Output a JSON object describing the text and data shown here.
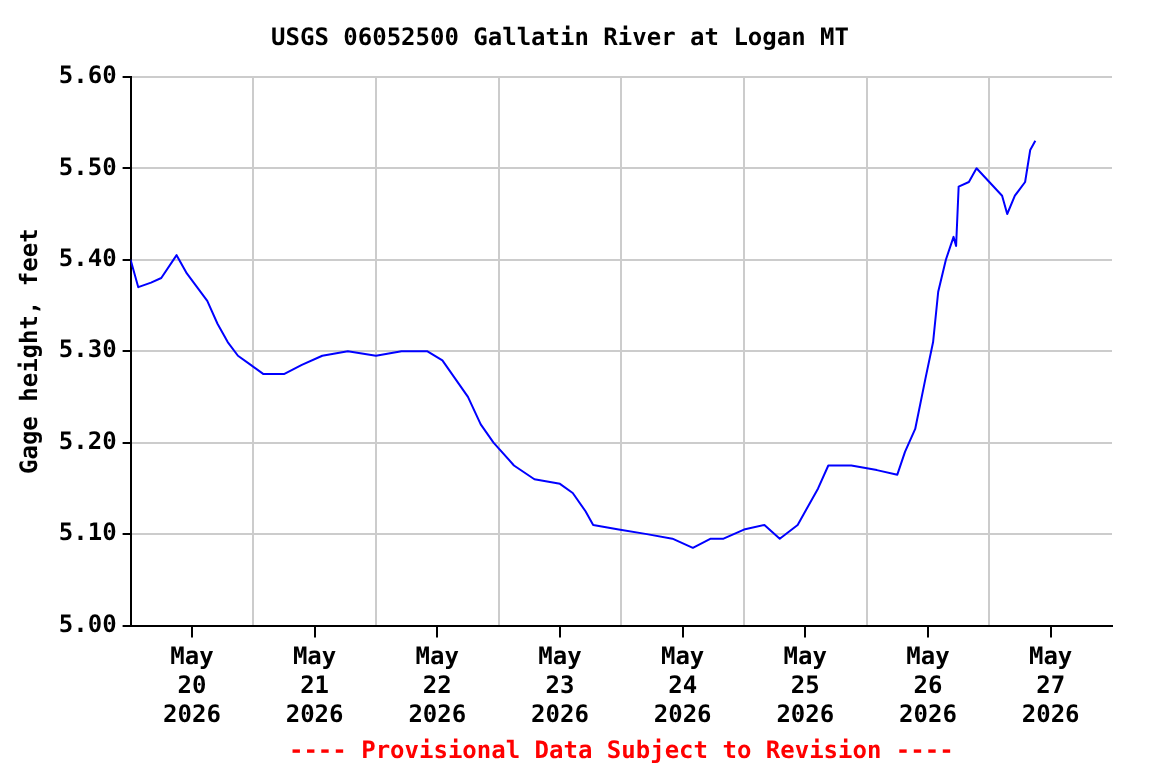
{
  "chart_data": {
    "type": "line",
    "title": "USGS 06052500 Gallatin River at Logan MT",
    "ylabel": "Gage height, feet",
    "annotations": [
      "---- Provisional Data Subject to Revision ----"
    ],
    "x": [
      "2026-05-19T12:00",
      "2026-05-19T13:30",
      "2026-05-19T16:00",
      "2026-05-19T18:00",
      "2026-05-19T21:00",
      "2026-05-19T23:00",
      "2026-05-20T01:00",
      "2026-05-20T03:00",
      "2026-05-20T05:00",
      "2026-05-20T07:00",
      "2026-05-20T09:00",
      "2026-05-20T11:30",
      "2026-05-20T14:00",
      "2026-05-20T18:00",
      "2026-05-20T21:30",
      "2026-05-21T01:30",
      "2026-05-21T06:30",
      "2026-05-21T12:00",
      "2026-05-21T17:00",
      "2026-05-21T22:00",
      "2026-05-22T01:00",
      "2026-05-22T03:30",
      "2026-05-22T06:00",
      "2026-05-22T08:30",
      "2026-05-22T11:00",
      "2026-05-22T15:00",
      "2026-05-22T19:00",
      "2026-05-23T00:00",
      "2026-05-23T02:30",
      "2026-05-23T05:00",
      "2026-05-23T06:30",
      "2026-05-23T11:30",
      "2026-05-23T17:00",
      "2026-05-23T22:00",
      "2026-05-24T02:00",
      "2026-05-24T05:30",
      "2026-05-24T08:00",
      "2026-05-24T12:00",
      "2026-05-24T16:00",
      "2026-05-24T19:00",
      "2026-05-24T22:30",
      "2026-05-25T02:30",
      "2026-05-25T04:30",
      "2026-05-25T09:00",
      "2026-05-25T14:00",
      "2026-05-25T18:00",
      "2026-05-25T19:30",
      "2026-05-25T21:30",
      "2026-05-25T23:30",
      "2026-05-26T01:00",
      "2026-05-26T02:00",
      "2026-05-26T03:30",
      "2026-05-26T05:00",
      "2026-05-26T05:30",
      "2026-05-26T06:00",
      "2026-05-26T08:00",
      "2026-05-26T09:30",
      "2026-05-26T12:00",
      "2026-05-26T14:30",
      "2026-05-26T15:30",
      "2026-05-26T17:00",
      "2026-05-26T19:00",
      "2026-05-26T20:00",
      "2026-05-26T21:00"
    ],
    "series": [
      {
        "color": "#0000ff",
        "values": [
          5.4,
          5.37,
          5.375,
          5.38,
          5.405,
          5.385,
          5.37,
          5.355,
          5.33,
          5.31,
          5.295,
          5.285,
          5.275,
          5.275,
          5.285,
          5.295,
          5.3,
          5.295,
          5.3,
          5.3,
          5.29,
          5.27,
          5.25,
          5.22,
          5.2,
          5.175,
          5.16,
          5.155,
          5.145,
          5.125,
          5.11,
          5.105,
          5.1,
          5.095,
          5.085,
          5.095,
          5.095,
          5.105,
          5.11,
          5.095,
          5.11,
          5.15,
          5.175,
          5.175,
          5.17,
          5.165,
          5.19,
          5.215,
          5.27,
          5.31,
          5.365,
          5.4,
          5.425,
          5.415,
          5.48,
          5.485,
          5.5,
          5.485,
          5.47,
          5.45,
          5.47,
          5.485,
          5.52,
          5.53
        ]
      }
    ],
    "xlim": [
      "2026-05-19T12:00",
      "2026-05-27T12:00"
    ],
    "xticks": [
      {
        "value": "2026-05-20T00:00",
        "label": "May 20 2026"
      },
      {
        "value": "2026-05-20T12:00",
        "label": null
      },
      {
        "value": "2026-05-21T00:00",
        "label": "May 21 2026"
      },
      {
        "value": "2026-05-21T12:00",
        "label": null
      },
      {
        "value": "2026-05-22T00:00",
        "label": "May 22 2026"
      },
      {
        "value": "2026-05-22T12:00",
        "label": null
      },
      {
        "value": "2026-05-23T00:00",
        "label": "May 23 2026"
      },
      {
        "value": "2026-05-23T12:00",
        "label": null
      },
      {
        "value": "2026-05-24T00:00",
        "label": "May 24 2026"
      },
      {
        "value": "2026-05-24T12:00",
        "label": null
      },
      {
        "value": "2026-05-25T00:00",
        "label": "May 25 2026"
      },
      {
        "value": "2026-05-25T12:00",
        "label": null
      },
      {
        "value": "2026-05-26T00:00",
        "label": "May 26 2026"
      },
      {
        "value": "2026-05-26T12:00",
        "label": null
      },
      {
        "value": "2026-05-27T00:00",
        "label": "May 27 2026"
      }
    ],
    "ylim": [
      5.0,
      5.6
    ],
    "yticks": [
      {
        "value": 5.0,
        "label": "5.00"
      },
      {
        "value": 5.1,
        "label": "5.10"
      },
      {
        "value": 5.2,
        "label": "5.20"
      },
      {
        "value": 5.3,
        "label": "5.30"
      },
      {
        "value": 5.4,
        "label": "5.40"
      },
      {
        "value": 5.5,
        "label": "5.50"
      },
      {
        "value": 5.6,
        "label": "5.60"
      }
    ],
    "grid": true,
    "legend": false,
    "marker": "none",
    "line_style": "solid"
  }
}
